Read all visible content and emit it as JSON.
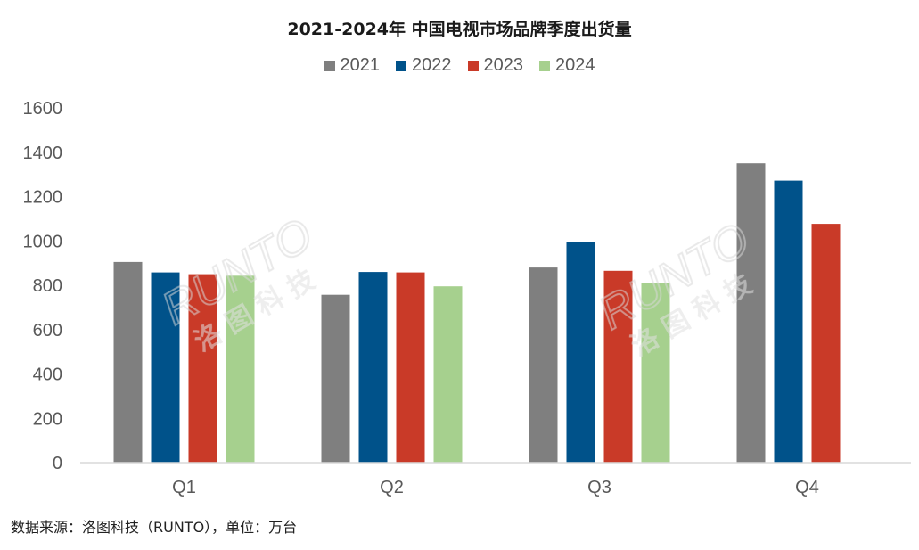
{
  "chart_data": {
    "type": "bar",
    "title": "2021-2024年 中国电视市场品牌季度出货量",
    "source": "数据来源：洛图科技（RUNTO），单位：万台",
    "watermark": [
      "RUNTO",
      "洛图科技"
    ],
    "categories": [
      "Q1",
      "Q2",
      "Q3",
      "Q4"
    ],
    "series": [
      {
        "name": "2021",
        "color": "#7f7f7f",
        "values": [
          905,
          757,
          880,
          1350
        ]
      },
      {
        "name": "2022",
        "color": "#00528a",
        "values": [
          858,
          860,
          997,
          1272
        ]
      },
      {
        "name": "2023",
        "color": "#c93a28",
        "values": [
          850,
          858,
          865,
          1077
        ]
      },
      {
        "name": "2024",
        "color": "#a6d08e",
        "values": [
          843,
          795,
          808,
          null
        ]
      }
    ],
    "ylim": [
      0,
      1600
    ],
    "yticks": [
      "0",
      "200",
      "400",
      "600",
      "800",
      "1000",
      "1200",
      "1400",
      "1600"
    ],
    "grid": false,
    "legend_position": "top-center"
  }
}
